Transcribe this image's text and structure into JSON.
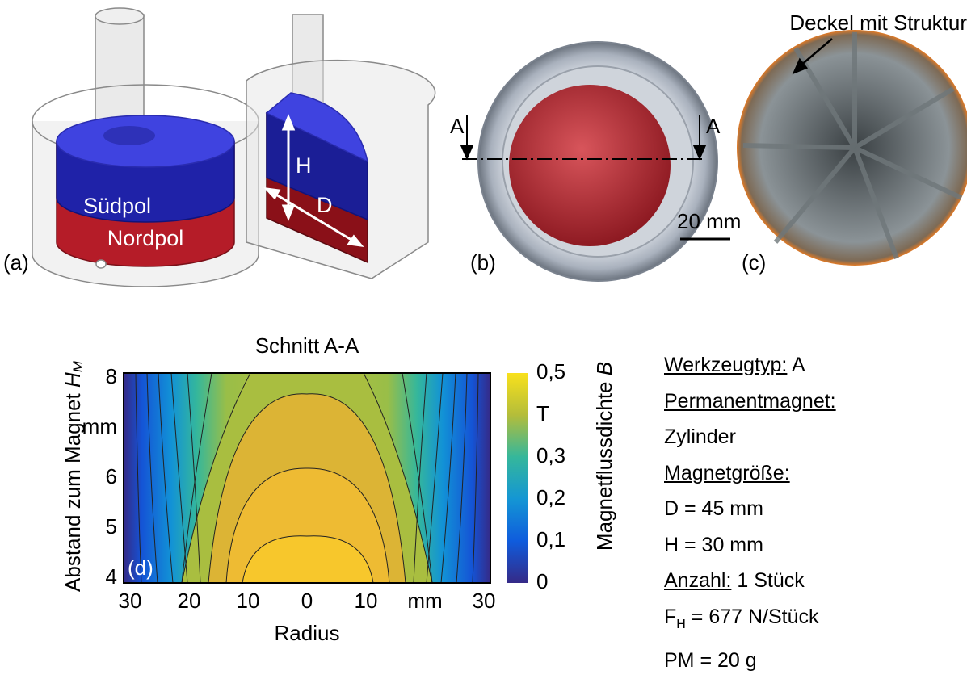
{
  "panels": {
    "a": {
      "label": "(a)",
      "south_pole": "Südpol",
      "north_pole": "Nordpol",
      "height_symbol": "H",
      "diameter_symbol": "D"
    },
    "b": {
      "label": "(b)",
      "section_left": "A",
      "section_right": "A"
    },
    "c": {
      "label": "(c)",
      "annotation": "Deckel mit Struktur",
      "scale_bar": "20 mm"
    },
    "d": {
      "label": "(d)",
      "title": "Schnitt A-A",
      "xlabel": "Radius",
      "ylabel": "Abstand zum Magnet",
      "ylabel_symbol": "H",
      "ylabel_subscript": "M",
      "colorbar_label": "Magnetflussdichte",
      "colorbar_symbol": "B",
      "xticks": [
        "30",
        "20",
        "10",
        "0",
        "10",
        "mm",
        "30"
      ],
      "yticks": [
        "8",
        "mm",
        "6",
        "5",
        "4"
      ],
      "colorbar_ticks": [
        "0,5",
        "T",
        "0,3",
        "0,2",
        "0,1",
        "0"
      ]
    }
  },
  "info": {
    "tool_type_key": "Werkzeugtyp:",
    "tool_type_value": "A",
    "magnet_key": "Permanentmagnet:",
    "magnet_value": "Zylinder",
    "size_key": "Magnetgröße:",
    "diameter": "D = 45 mm",
    "height": "H = 30 mm",
    "count_key": "Anzahl:",
    "count_value": "1 Stück",
    "force_symbol": "F",
    "force_subscript": "H",
    "force_value": " = 677 N/Stück",
    "mass": "PM = 20 g"
  }
}
